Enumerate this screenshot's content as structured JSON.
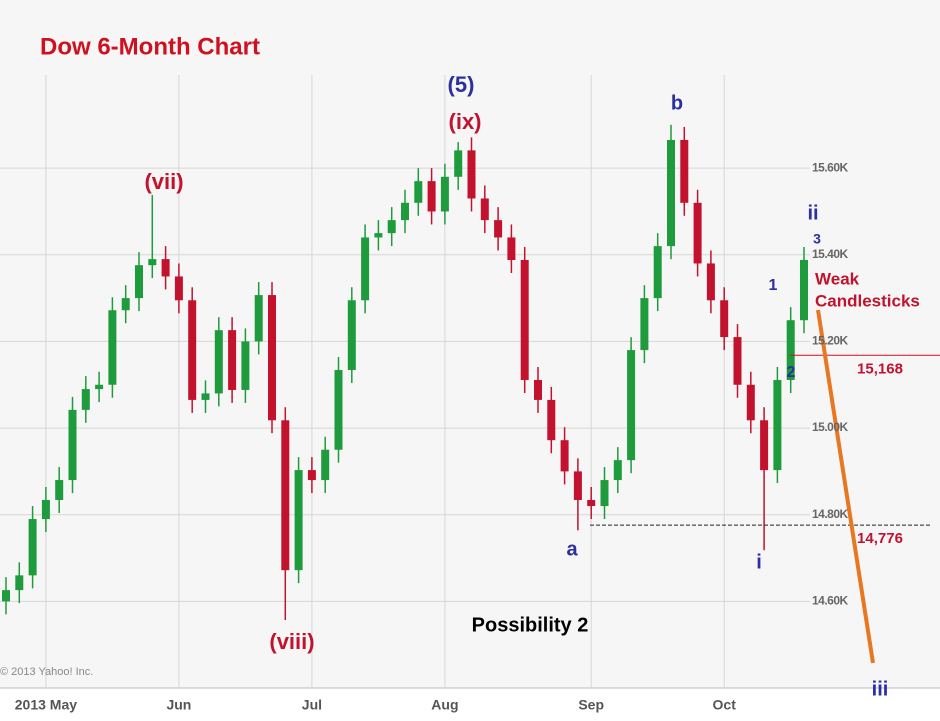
{
  "chart_data": {
    "type": "candlestick",
    "title": "Dow 6-Month Chart",
    "x": [
      null,
      null,
      null,
      "2013 May",
      null,
      null,
      null,
      null,
      null,
      null,
      null,
      null,
      null,
      "Jun",
      null,
      null,
      null,
      null,
      null,
      null,
      null,
      null,
      null,
      "Jul",
      null,
      null,
      null,
      null,
      null,
      null,
      null,
      null,
      null,
      "Aug",
      null,
      null,
      null,
      null,
      null,
      null,
      null,
      null,
      null,
      null,
      "Sep",
      null,
      null,
      null,
      null,
      null,
      null,
      null,
      null,
      null,
      "Oct",
      null,
      null,
      null,
      null,
      null,
      null
    ],
    "open": [
      14600,
      14626,
      14660,
      14790,
      14834,
      14880,
      15042,
      15090,
      15100,
      15272,
      15300,
      15376,
      15390,
      15350,
      15295,
      15065,
      15080,
      15226,
      15088,
      15200,
      15307,
      15018,
      14672,
      14903,
      14880,
      14950,
      15134,
      15295,
      15440,
      15450,
      15480,
      15520,
      15570,
      15500,
      15580,
      15641,
      15530,
      15480,
      15440,
      15388,
      15111,
      15065,
      14972,
      14900,
      14834,
      14820,
      14880,
      14926,
      15180,
      15300,
      15420,
      15665,
      15520,
      15380,
      15295,
      15210,
      15100,
      15018,
      14903,
      15111,
      15249
    ],
    "high": [
      14656,
      14690,
      14820,
      14864,
      14910,
      15072,
      15120,
      15130,
      15302,
      15330,
      15406,
      15538,
      15420,
      15380,
      15325,
      15110,
      15256,
      15256,
      15230,
      15337,
      15337,
      15048,
      14933,
      14933,
      14980,
      15164,
      15325,
      15470,
      15480,
      15510,
      15550,
      15600,
      15600,
      15610,
      15660,
      15671,
      15560,
      15510,
      15470,
      15418,
      15141,
      15095,
      15002,
      14930,
      14864,
      14910,
      14956,
      15210,
      15330,
      15450,
      15700,
      15695,
      15550,
      15410,
      15325,
      15240,
      15130,
      15048,
      15141,
      15279,
      15418
    ],
    "low": [
      14570,
      14596,
      14630,
      14760,
      14804,
      14850,
      15012,
      15060,
      15070,
      15242,
      15270,
      15346,
      15320,
      15265,
      15035,
      15035,
      15050,
      15058,
      15058,
      15170,
      14988,
      14557,
      14642,
      14850,
      14850,
      14920,
      15104,
      15265,
      15410,
      15420,
      15450,
      15490,
      15470,
      15470,
      15550,
      15500,
      15450,
      15410,
      15358,
      15081,
      15035,
      14942,
      14870,
      14764,
      14790,
      14790,
      14850,
      14896,
      15150,
      15270,
      15390,
      15490,
      15350,
      15265,
      15180,
      15070,
      14988,
      14718,
      14873,
      15081,
      15219
    ],
    "close": [
      14626,
      14660,
      14790,
      14834,
      14880,
      15042,
      15090,
      15100,
      15272,
      15300,
      15376,
      15390,
      15350,
      15295,
      15065,
      15080,
      15226,
      15088,
      15200,
      15307,
      15018,
      14672,
      14903,
      14880,
      14950,
      15134,
      15295,
      15440,
      15450,
      15480,
      15520,
      15570,
      15500,
      15580,
      15641,
      15530,
      15480,
      15440,
      15388,
      15111,
      15065,
      14972,
      14900,
      14834,
      14820,
      14880,
      14926,
      15180,
      15300,
      15420,
      15665,
      15520,
      15380,
      15295,
      15210,
      15100,
      15018,
      14903,
      15111,
      15249,
      15388
    ],
    "up_color": "#1e9b3c",
    "down_color": "#c3122d",
    "ylim": [
      14400,
      15815
    ],
    "yticks": [
      {
        "value": 14600,
        "label": "14.60K"
      },
      {
        "value": 14800,
        "label": "14.80K"
      },
      {
        "value": 15000,
        "label": "15.00K"
      },
      {
        "value": 15200,
        "label": "15.20K"
      },
      {
        "value": 15400,
        "label": "15.40K"
      },
      {
        "value": 15600,
        "label": "15.60K"
      }
    ],
    "grid": true,
    "levels": [
      {
        "value": 15168,
        "label": "15,168",
        "color": "#d0101e"
      },
      {
        "value": 14776,
        "label": "14,776",
        "color": "#222222"
      }
    ],
    "annotations": [
      {
        "text": "(5)",
        "color": "#2b2fa0"
      },
      {
        "text": "(ix)",
        "color": "#c3122d"
      },
      {
        "text": "(vii)",
        "color": "#c3122d"
      },
      {
        "text": "(viii)",
        "color": "#c3122d"
      },
      {
        "text": "b",
        "color": "#2b2fa0"
      },
      {
        "text": "a",
        "color": "#2b2fa0"
      },
      {
        "text": "i",
        "color": "#2b2fa0"
      },
      {
        "text": "ii",
        "color": "#2b2fa0"
      },
      {
        "text": "3",
        "color": "#2b2fa0"
      },
      {
        "text": "1",
        "color": "#2b2fa0"
      },
      {
        "text": "2",
        "color": "#2b2fa0"
      },
      {
        "text": "iii",
        "color": "#2b2fa0"
      },
      {
        "text": "Weak",
        "color": "#c3122d"
      },
      {
        "text": "Candlesticks",
        "color": "#c3122d"
      },
      {
        "text": "Possibility 2",
        "color": "#000000"
      },
      {
        "text": "© 2013 Yahoo! Inc.",
        "color": "#888888"
      }
    ]
  }
}
